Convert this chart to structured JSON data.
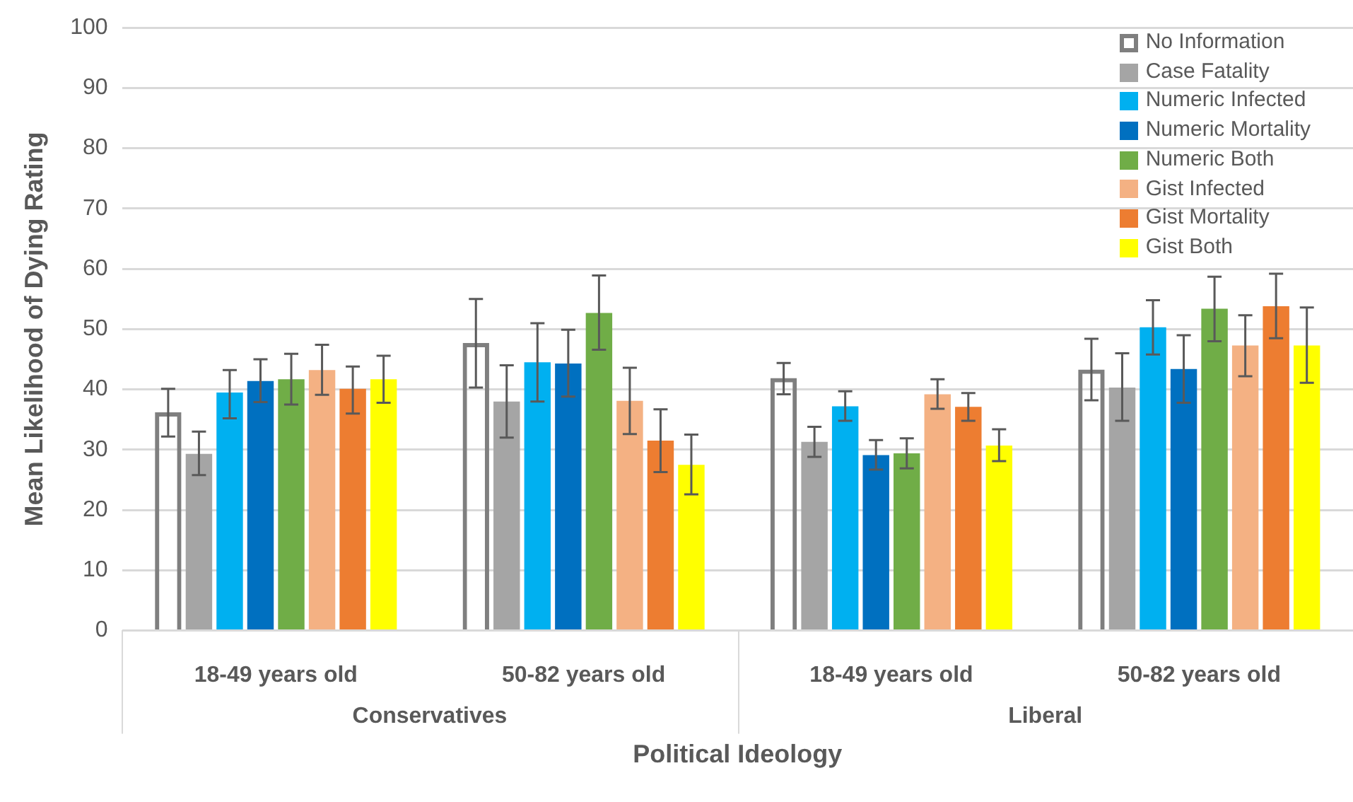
{
  "chart_data": {
    "type": "bar",
    "xlabel": "Political Ideology",
    "ylabel": "Mean Likelihood of Dying Rating",
    "categories": [
      "18-49 years old",
      "50-82 years old",
      "18-49 years old",
      "50-82 years old"
    ],
    "annotations": [
      "Conservatives",
      "Liberal"
    ],
    "ylim": [
      0,
      100
    ],
    "yticks": [
      0,
      10,
      20,
      30,
      40,
      50,
      60,
      70,
      80,
      90,
      100
    ],
    "grid": "y",
    "legend": "top right",
    "series": [
      {
        "name": "No Information",
        "color": "#7f7f7f",
        "values": [
          36.2,
          47.7,
          41.9,
          43.3
        ],
        "errors": [
          [
            32.2,
            40.1
          ],
          [
            40.3,
            55
          ],
          [
            39.2,
            44.4
          ],
          [
            38.2,
            48.4
          ]
        ]
      },
      {
        "name": "Case Fatality",
        "color": "#a5a5a5",
        "values": [
          29.3,
          38,
          31.3,
          40.3
        ],
        "errors": [
          [
            25.8,
            33
          ],
          [
            32,
            44
          ],
          [
            28.8,
            33.8
          ],
          [
            34.8,
            46
          ]
        ]
      },
      {
        "name": "Numeric Infected",
        "color": "#00b0f0",
        "values": [
          39.5,
          44.5,
          37.2,
          50.3
        ],
        "errors": [
          [
            35.2,
            43.2
          ],
          [
            38,
            51
          ],
          [
            34.8,
            39.7
          ],
          [
            45.8,
            54.8
          ]
        ]
      },
      {
        "name": "Numeric Mortality",
        "color": "#0070c0",
        "values": [
          41.4,
          44.3,
          29.1,
          43.4
        ],
        "errors": [
          [
            37.9,
            45
          ],
          [
            38.8,
            49.9
          ],
          [
            26.7,
            31.6
          ],
          [
            37.8,
            49
          ]
        ]
      },
      {
        "name": "Numeric Both",
        "color": "#70ad47",
        "values": [
          41.7,
          52.7,
          29.4,
          53.4
        ],
        "errors": [
          [
            37.5,
            45.9
          ],
          [
            46.6,
            58.9
          ],
          [
            26.9,
            31.9
          ],
          [
            48,
            58.7
          ]
        ]
      },
      {
        "name": "Gist Infected",
        "color": "#f4b183",
        "values": [
          43.2,
          38.1,
          39.2,
          47.3
        ],
        "errors": [
          [
            39.1,
            47.4
          ],
          [
            32.6,
            43.6
          ],
          [
            36.8,
            41.7
          ],
          [
            42.2,
            52.3
          ]
        ]
      },
      {
        "name": "Gist Mortality",
        "color": "#ed7d31",
        "values": [
          40.1,
          31.5,
          37.1,
          53.8
        ],
        "errors": [
          [
            36,
            43.8
          ],
          [
            26.3,
            36.7
          ],
          [
            34.8,
            39.4
          ],
          [
            48.5,
            59.2
          ]
        ]
      },
      {
        "name": "Gist Both",
        "color": "#ffff00",
        "values": [
          41.7,
          27.5,
          30.7,
          47.3
        ],
        "errors": [
          [
            37.8,
            45.6
          ],
          [
            22.6,
            32.5
          ],
          [
            28.1,
            33.4
          ],
          [
            41.1,
            53.6
          ]
        ]
      }
    ]
  }
}
